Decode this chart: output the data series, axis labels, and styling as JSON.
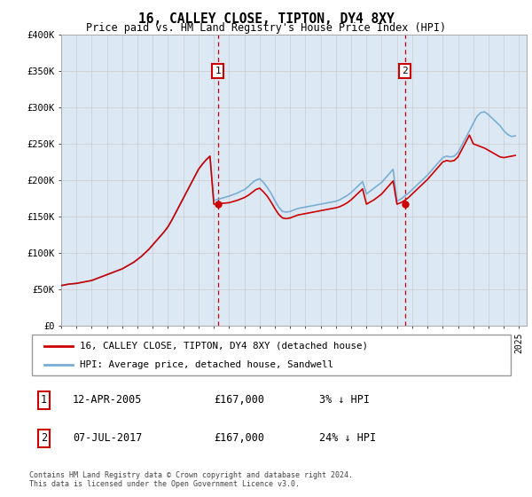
{
  "title": "16, CALLEY CLOSE, TIPTON, DY4 8XY",
  "subtitle": "Price paid vs. HM Land Registry's House Price Index (HPI)",
  "legend_line1": "16, CALLEY CLOSE, TIPTON, DY4 8XY (detached house)",
  "legend_line2": "HPI: Average price, detached house, Sandwell",
  "footnote": "Contains HM Land Registry data © Crown copyright and database right 2024.\nThis data is licensed under the Open Government Licence v3.0.",
  "table_rows": [
    [
      "1",
      "12-APR-2005",
      "£167,000",
      "3% ↓ HPI"
    ],
    [
      "2",
      "07-JUL-2017",
      "£167,000",
      "24% ↓ HPI"
    ]
  ],
  "sale1_year": 2005.28,
  "sale1_price": 167000,
  "sale2_year": 2017.52,
  "sale2_price": 167000,
  "hpi_color": "#7aadd4",
  "price_color": "#cc0000",
  "marker_box_color": "#cc0000",
  "vline_color": "#cc0000",
  "background_color": "#dce9f5",
  "ylim": [
    0,
    400000
  ],
  "xlim_left": 1995.0,
  "xlim_right": 2025.5,
  "yticks": [
    0,
    50000,
    100000,
    150000,
    200000,
    250000,
    300000,
    350000,
    400000
  ],
  "ytick_labels": [
    "£0",
    "£50K",
    "£100K",
    "£150K",
    "£200K",
    "£250K",
    "£300K",
    "£350K",
    "£400K"
  ],
  "xtick_years": [
    1995,
    1996,
    1997,
    1998,
    1999,
    2000,
    2001,
    2002,
    2003,
    2004,
    2005,
    2006,
    2007,
    2008,
    2009,
    2010,
    2011,
    2012,
    2013,
    2014,
    2015,
    2016,
    2017,
    2018,
    2019,
    2020,
    2021,
    2022,
    2023,
    2024,
    2025
  ],
  "hpi_x": [
    1995,
    1995.25,
    1995.5,
    1995.75,
    1996,
    1996.25,
    1996.5,
    1996.75,
    1997,
    1997.25,
    1997.5,
    1997.75,
    1998,
    1998.25,
    1998.5,
    1998.75,
    1999,
    1999.25,
    1999.5,
    1999.75,
    2000,
    2000.25,
    2000.5,
    2000.75,
    2001,
    2001.25,
    2001.5,
    2001.75,
    2002,
    2002.25,
    2002.5,
    2002.75,
    2003,
    2003.25,
    2003.5,
    2003.75,
    2004,
    2004.25,
    2004.5,
    2004.75,
    2005,
    2005.25,
    2005.5,
    2005.75,
    2006,
    2006.25,
    2006.5,
    2006.75,
    2007,
    2007.25,
    2007.5,
    2007.75,
    2008,
    2008.25,
    2008.5,
    2008.75,
    2009,
    2009.25,
    2009.5,
    2009.75,
    2010,
    2010.25,
    2010.5,
    2010.75,
    2011,
    2011.25,
    2011.5,
    2011.75,
    2012,
    2012.25,
    2012.5,
    2012.75,
    2013,
    2013.25,
    2013.5,
    2013.75,
    2014,
    2014.25,
    2014.5,
    2014.75,
    2015,
    2015.25,
    2015.5,
    2015.75,
    2016,
    2016.25,
    2016.5,
    2016.75,
    2017,
    2017.25,
    2017.5,
    2017.75,
    2018,
    2018.25,
    2018.5,
    2018.75,
    2019,
    2019.25,
    2019.5,
    2019.75,
    2020,
    2020.25,
    2020.5,
    2020.75,
    2021,
    2021.25,
    2021.5,
    2021.75,
    2022,
    2022.25,
    2022.5,
    2022.75,
    2023,
    2023.25,
    2023.5,
    2023.75,
    2024,
    2024.25,
    2024.5,
    2024.75
  ],
  "hpi_y": [
    55000,
    56000,
    57000,
    57500,
    58000,
    59000,
    60000,
    61000,
    62000,
    64000,
    66000,
    68000,
    70000,
    72000,
    74000,
    76000,
    78000,
    81000,
    84000,
    87000,
    91000,
    95000,
    100000,
    105000,
    111000,
    117000,
    123000,
    129000,
    136000,
    145000,
    155000,
    165000,
    175000,
    185000,
    195000,
    205000,
    215000,
    222000,
    228000,
    233000,
    172000,
    173500,
    175000,
    176500,
    178000,
    180000,
    182000,
    184500,
    187000,
    191000,
    196000,
    200000,
    202000,
    197000,
    190000,
    182000,
    172000,
    163000,
    157000,
    156000,
    157000,
    159000,
    161000,
    162000,
    163000,
    164000,
    165000,
    166000,
    167000,
    168000,
    169000,
    170000,
    171000,
    173000,
    176000,
    179000,
    183000,
    188000,
    193000,
    198000,
    181000,
    185000,
    189000,
    193000,
    197000,
    203000,
    209000,
    215000,
    171000,
    174000,
    178000,
    182000,
    187000,
    192000,
    197000,
    202000,
    207000,
    213000,
    219000,
    225000,
    231000,
    233000,
    232000,
    233000,
    238000,
    248000,
    258000,
    268000,
    278000,
    288000,
    293000,
    294000,
    290000,
    285000,
    280000,
    275000,
    268000,
    263000,
    260000,
    261000
  ],
  "price_y": [
    55000,
    56000,
    57000,
    57500,
    58000,
    59000,
    60000,
    61000,
    62000,
    64000,
    66000,
    68000,
    70000,
    72000,
    74000,
    76000,
    78000,
    81000,
    84000,
    87000,
    91000,
    95000,
    100000,
    105000,
    111000,
    117000,
    123000,
    129000,
    136000,
    145000,
    155000,
    165000,
    175000,
    185000,
    195000,
    205000,
    215000,
    222000,
    228000,
    233000,
    167000,
    167500,
    168000,
    168500,
    169000,
    170500,
    172000,
    174000,
    176000,
    179000,
    183000,
    187000,
    189000,
    184000,
    178000,
    170000,
    161000,
    153000,
    148000,
    147000,
    148000,
    150000,
    152000,
    153000,
    154000,
    155000,
    156000,
    157000,
    158000,
    159000,
    160000,
    161000,
    162000,
    163500,
    166000,
    169000,
    173000,
    178000,
    183000,
    188000,
    167000,
    170000,
    173000,
    177000,
    181000,
    187000,
    193000,
    199000,
    167000,
    169000,
    172000,
    176000,
    181000,
    186000,
    191000,
    196000,
    201000,
    207000,
    213000,
    219000,
    225000,
    227000,
    226000,
    227000,
    232000,
    242000,
    252000,
    262000,
    250000,
    248000,
    246000,
    244000,
    241000,
    238000,
    235000,
    232000,
    231000,
    232000,
    233000,
    234000
  ]
}
